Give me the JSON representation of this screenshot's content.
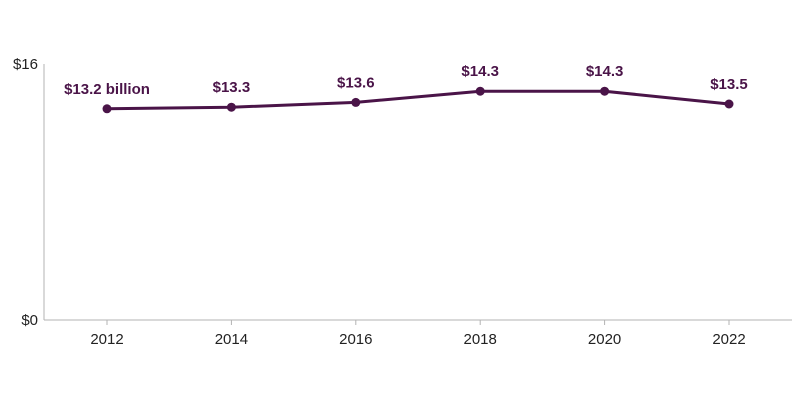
{
  "chart_data": {
    "type": "line",
    "title": "",
    "xlabel": "",
    "ylabel": "",
    "x": [
      "2012",
      "2014",
      "2016",
      "2018",
      "2020",
      "2022"
    ],
    "values": [
      13.2,
      13.3,
      13.6,
      14.3,
      14.3,
      13.5
    ],
    "data_labels": [
      "$13.2 billion",
      "$13.3",
      "$13.6",
      "$14.3",
      "$14.3",
      "$13.5"
    ],
    "ylim": [
      0,
      16
    ],
    "y_ticks": [
      {
        "value": 16,
        "label": "$16"
      },
      {
        "value": 0,
        "label": "$0"
      }
    ],
    "grid": false,
    "legend": "none",
    "line_color": "#4a1448",
    "axis_color": "#b3b3b3"
  }
}
